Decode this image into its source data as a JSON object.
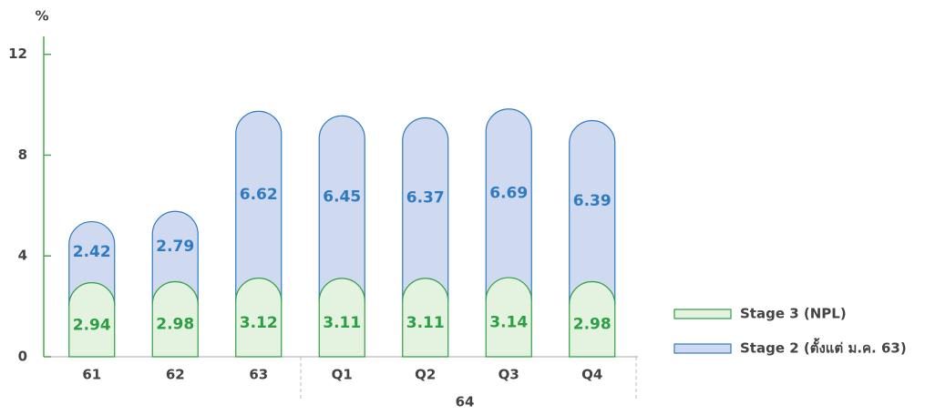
{
  "chart_data": {
    "type": "stacked-pill-bar",
    "y_label": "%",
    "categories": [
      "61",
      "62",
      "63",
      "Q1",
      "Q2",
      "Q3",
      "Q4"
    ],
    "group_label": "64",
    "series": [
      {
        "name": "Stage 3 (NPL)",
        "color": "#2e9e44",
        "fill": "#e4f3df",
        "values": [
          2.94,
          2.98,
          3.12,
          3.11,
          3.11,
          3.14,
          2.98
        ]
      },
      {
        "name": "Stage 2 (ตั้งแต่ ม.ค. 63)",
        "color": "#2f7bc0",
        "fill": "#cfd9ef",
        "values": [
          2.42,
          2.79,
          6.62,
          6.45,
          6.37,
          6.69,
          6.39
        ]
      }
    ],
    "ylim": [
      0,
      13
    ],
    "yticks": [
      0,
      4,
      8,
      12
    ]
  }
}
